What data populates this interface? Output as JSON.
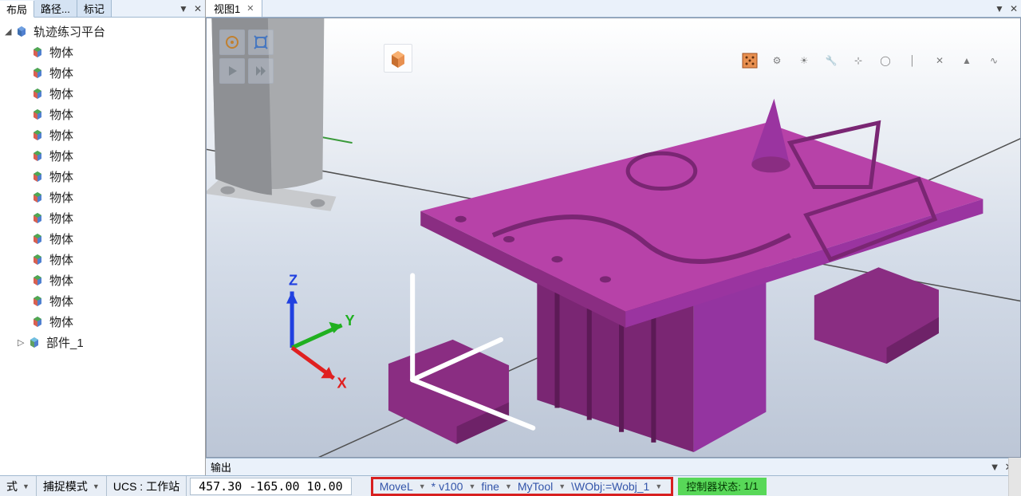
{
  "sidebar": {
    "tabs": [
      {
        "label": "布局",
        "active": true
      },
      {
        "label": "路径...",
        "active": false
      },
      {
        "label": "标记",
        "active": false
      }
    ],
    "root": {
      "label": "轨迹练习平台",
      "expanded": true
    },
    "items": [
      {
        "label": "物体"
      },
      {
        "label": "物体"
      },
      {
        "label": "物体"
      },
      {
        "label": "物体"
      },
      {
        "label": "物体"
      },
      {
        "label": "物体"
      },
      {
        "label": "物体"
      },
      {
        "label": "物体"
      },
      {
        "label": "物体"
      },
      {
        "label": "物体"
      },
      {
        "label": "物体"
      },
      {
        "label": "物体"
      },
      {
        "label": "物体"
      },
      {
        "label": "物体"
      }
    ],
    "component": {
      "label": "部件_1",
      "expanded": false
    }
  },
  "viewport": {
    "tab_label": "视图1",
    "axes": {
      "x": "X",
      "y": "Y",
      "z": "Z"
    },
    "colors": {
      "fixture": "#b742a8",
      "fixture_dark": "#8a2d82",
      "robot_base": "#a8aaad",
      "floor_line": "#4a4a4a",
      "axis_x": "#e02020",
      "axis_y": "#20b020",
      "axis_z": "#2040e0",
      "coord_frame": "#ffffff"
    },
    "toolbar_icons": [
      "target",
      "expand",
      "play",
      "forward"
    ],
    "right_icons": [
      "box-orange",
      "grid",
      "gear",
      "sun",
      "wrench",
      "node",
      "circle",
      "line",
      "cross",
      "up",
      "dot"
    ]
  },
  "output": {
    "label": "输出"
  },
  "status": {
    "mode_left": "式",
    "capture_mode": "捕捉模式",
    "ucs_label": "UCS : 工作站",
    "coords": "457.30  -165.00  10.00",
    "move": {
      "cmd": "MoveL",
      "star": "*",
      "speed": "v100",
      "zone": "fine",
      "tool": "MyTool",
      "wobj": "\\WObj:=Wobj_1"
    },
    "controller_label": "控制器状态:",
    "controller_value": "1/1"
  },
  "icon_colors": {
    "cube_face1": "#d86050",
    "cube_face2": "#5080d0",
    "cube_face3": "#50a850",
    "cube_root1": "#4878c0",
    "cube_root2": "#60a060"
  }
}
